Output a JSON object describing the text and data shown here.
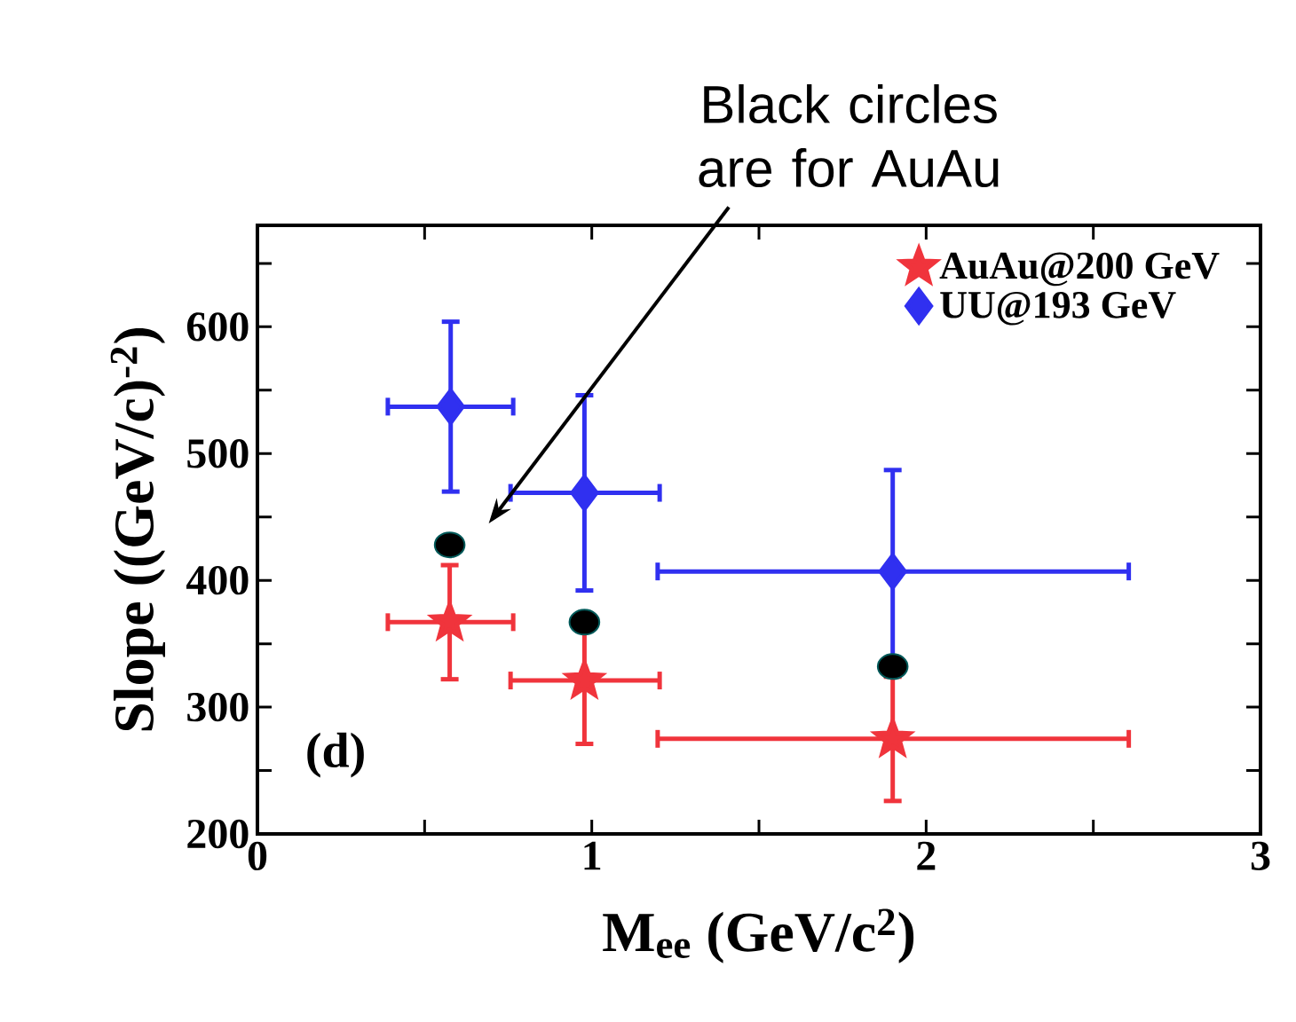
{
  "chart_data": {
    "type": "scatter",
    "xlabel": "M$_{ee}$ (GeV/c$^{2}$)",
    "ylabel": "Slope ((GeV/c)$^{-2}$)",
    "xlim": [
      0,
      3
    ],
    "ylim": [
      200,
      680
    ],
    "xticks": [
      0,
      {
        "value": 0.5,
        "label": null
      },
      1,
      {
        "value": 1.5,
        "label": null
      },
      2,
      {
        "value": 2.5,
        "label": null
      },
      3
    ],
    "yticks": [
      200,
      {
        "value": 250,
        "label": null
      },
      300,
      {
        "value": 350,
        "label": null
      },
      400,
      {
        "value": 450,
        "label": null
      },
      500,
      {
        "value": 550,
        "label": null
      },
      600,
      {
        "value": 650,
        "label": null
      }
    ],
    "series": [
      {
        "name": "AuAu@200 GeV",
        "color": "#f0343c",
        "marker": "star",
        "x": [
          0.575,
          0.978,
          1.9
        ],
        "values": [
          367,
          321,
          275
        ],
        "errors": [
          45,
          50,
          49
        ],
        "xerrors": [
          [
            0.39,
            0.765
          ],
          [
            0.757,
            1.203
          ],
          [
            1.197,
            2.606
          ]
        ]
      },
      {
        "name": "UU@193 GeV",
        "color": "#3030f0",
        "marker": "diamond",
        "x": [
          0.578,
          0.978,
          1.9
        ],
        "values": [
          537,
          469,
          407
        ],
        "errors": [
          67,
          77,
          80
        ],
        "xerrors": [
          [
            0.39,
            0.765
          ],
          [
            0.757,
            1.203
          ],
          [
            1.197,
            2.606
          ]
        ]
      },
      {
        "color": "#000000",
        "marker": "circle",
        "x": [
          0.575,
          0.978,
          1.9
        ],
        "values": [
          428,
          367,
          332
        ]
      }
    ],
    "legend": "top right",
    "grid": false,
    "annotations": [
      "Black circles are for AuAu",
      "(d)"
    ]
  }
}
